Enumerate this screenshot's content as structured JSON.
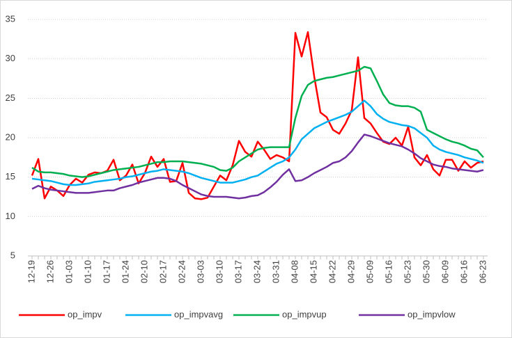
{
  "chart_data": {
    "type": "line",
    "categories": [
      "12-19",
      null,
      null,
      "12-26",
      null,
      null,
      "01-03",
      null,
      null,
      "01-10",
      null,
      null,
      "01-17",
      null,
      null,
      "01-24",
      null,
      null,
      "02-10",
      null,
      null,
      "02-17",
      null,
      null,
      "02-24",
      null,
      null,
      "03-03",
      null,
      null,
      "03-10",
      null,
      null,
      "03-17",
      null,
      null,
      "03-24",
      null,
      null,
      "03-31",
      null,
      null,
      "04-08",
      null,
      null,
      "04-15",
      null,
      null,
      "04-22",
      null,
      null,
      "04-29",
      null,
      null,
      "05-09",
      null,
      null,
      "05-16",
      null,
      null,
      "05-23",
      null,
      null,
      "05-30",
      null,
      null,
      "06-09",
      null,
      null,
      "06-16",
      null,
      null,
      "06-23"
    ],
    "series": [
      {
        "name": "op_impv",
        "color": "#ff0000",
        "values": [
          15.2,
          17.3,
          12.3,
          13.8,
          13.3,
          12.6,
          14.0,
          14.8,
          14.3,
          15.3,
          15.6,
          15.5,
          15.8,
          17.2,
          14.6,
          15.2,
          16.6,
          14.2,
          15.5,
          17.6,
          16.3,
          17.3,
          14.4,
          14.5,
          16.8,
          13.0,
          12.3,
          12.2,
          12.4,
          13.8,
          15.2,
          14.6,
          16.5,
          19.6,
          18.2,
          17.6,
          19.5,
          18.5,
          17.3,
          17.8,
          17.5,
          17.0,
          33.3,
          30.3,
          33.4,
          27.8,
          23.2,
          22.6,
          21.0,
          20.5,
          21.8,
          23.5,
          30.2,
          22.5,
          21.8,
          20.6,
          19.5,
          19.2,
          20.0,
          19.0,
          21.4,
          17.5,
          16.5,
          17.8,
          16.0,
          15.2,
          17.2,
          17.2,
          15.8,
          17.0,
          16.2,
          16.8,
          17.0
        ]
      },
      {
        "name": "op_impvavg",
        "color": "#00b0f0",
        "values": [
          14.8,
          14.7,
          14.6,
          14.5,
          14.3,
          14.1,
          14.0,
          14.0,
          14.1,
          14.2,
          14.4,
          14.5,
          14.6,
          14.7,
          14.8,
          15.0,
          15.1,
          15.3,
          15.5,
          15.7,
          15.8,
          16.0,
          15.9,
          15.8,
          15.7,
          15.5,
          15.2,
          14.9,
          14.7,
          14.5,
          14.3,
          14.3,
          14.3,
          14.5,
          14.7,
          15.0,
          15.2,
          15.7,
          16.2,
          16.7,
          17.0,
          17.5,
          18.5,
          19.8,
          20.5,
          21.2,
          21.6,
          22.0,
          22.3,
          22.6,
          22.9,
          23.3,
          24.0,
          24.7,
          24.0,
          23.0,
          22.4,
          22.0,
          21.8,
          21.6,
          21.5,
          21.2,
          20.6,
          20.0,
          19.0,
          18.5,
          18.2,
          18.0,
          17.8,
          17.5,
          17.3,
          17.1,
          16.8
        ]
      },
      {
        "name": "op_impvup",
        "color": "#00b050",
        "values": [
          16.2,
          15.7,
          15.6,
          15.6,
          15.5,
          15.4,
          15.2,
          15.1,
          15.0,
          15.1,
          15.3,
          15.5,
          15.7,
          15.9,
          16.0,
          16.1,
          16.2,
          16.3,
          16.5,
          16.7,
          16.9,
          16.9,
          17.0,
          17.0,
          17.0,
          16.9,
          16.8,
          16.7,
          16.5,
          16.3,
          15.9,
          15.8,
          16.2,
          17.0,
          17.5,
          18.0,
          18.5,
          18.7,
          18.8,
          18.8,
          18.8,
          18.8,
          22.5,
          25.3,
          26.7,
          27.2,
          27.4,
          27.6,
          27.7,
          27.9,
          28.1,
          28.3,
          28.5,
          29.0,
          28.8,
          27.2,
          25.5,
          24.4,
          24.1,
          24.0,
          24.0,
          23.8,
          23.3,
          21.0,
          20.6,
          20.2,
          19.8,
          19.5,
          19.3,
          19.0,
          18.6,
          18.4,
          17.5
        ]
      },
      {
        "name": "op_impvlow",
        "color": "#7030a0",
        "values": [
          13.5,
          13.9,
          13.6,
          13.4,
          13.3,
          13.2,
          13.1,
          13.0,
          13.0,
          13.0,
          13.1,
          13.2,
          13.3,
          13.3,
          13.6,
          13.8,
          14.0,
          14.3,
          14.5,
          14.7,
          14.9,
          14.9,
          14.8,
          14.5,
          14.0,
          13.6,
          13.2,
          12.8,
          12.6,
          12.5,
          12.5,
          12.5,
          12.4,
          12.3,
          12.4,
          12.6,
          12.7,
          13.1,
          13.7,
          14.4,
          15.3,
          16.0,
          14.5,
          14.6,
          15.0,
          15.5,
          15.9,
          16.3,
          16.8,
          17.0,
          17.5,
          18.3,
          19.4,
          20.4,
          20.2,
          19.9,
          19.6,
          19.3,
          19.1,
          18.9,
          18.5,
          18.0,
          17.4,
          17.0,
          16.6,
          16.4,
          16.3,
          16.1,
          16.0,
          15.9,
          15.8,
          15.7,
          15.9
        ]
      }
    ],
    "ylim": [
      5,
      35
    ],
    "yticks": [
      5,
      10,
      15,
      20,
      25,
      30,
      35
    ],
    "grid": true
  }
}
